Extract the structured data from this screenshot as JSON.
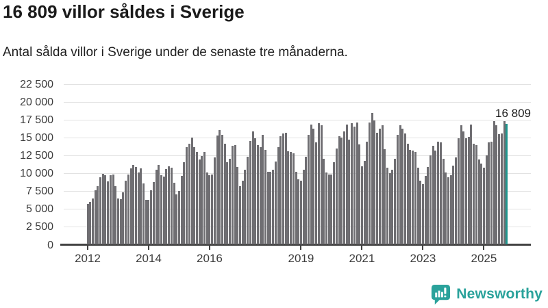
{
  "header": {
    "title": "16 809 villor såldes i Sverige",
    "subtitle": "Antal sålda villor i Sverige under de senaste tre månaderna."
  },
  "chart_data": {
    "type": "bar",
    "title": "16 809 villor såldes i Sverige",
    "subtitle": "Antal sålda villor i Sverige under de senaste tre månaderna.",
    "unit": "sålda villor (rullande tre månader)",
    "frequency": "monthly",
    "start": {
      "year": 2012,
      "month": 1
    },
    "end": {
      "year": 2025,
      "month": 10
    },
    "values": [
      5700,
      5900,
      6450,
      7550,
      8100,
      9400,
      9900,
      9700,
      8850,
      9650,
      9800,
      8150,
      6400,
      6300,
      7300,
      8900,
      9800,
      10600,
      11100,
      10800,
      10100,
      10600,
      8500,
      6250,
      6200,
      7550,
      8700,
      10450,
      11100,
      9700,
      9500,
      10550,
      10900,
      10700,
      8600,
      7000,
      7500,
      9600,
      11500,
      13600,
      14100,
      14900,
      13600,
      12900,
      11900,
      12400,
      12900,
      10100,
      9700,
      9800,
      12150,
      15200,
      16000,
      15350,
      14100,
      11500,
      12000,
      13750,
      13900,
      10850,
      8150,
      8950,
      10400,
      12300,
      14500,
      15800,
      14850,
      13900,
      13600,
      15300,
      13200,
      10200,
      10200,
      10400,
      11600,
      13600,
      15100,
      15550,
      15650,
      13000,
      12950,
      12700,
      10200,
      9100,
      8950,
      10400,
      12300,
      15350,
      16800,
      16150,
      14250,
      16950,
      16650,
      12000,
      10050,
      9750,
      9800,
      11500,
      13450,
      15150,
      14900,
      15850,
      16800,
      14700,
      16950,
      16500,
      17000,
      14000,
      10900,
      11700,
      14400,
      17000,
      18400,
      17350,
      15650,
      16150,
      16700,
      13270,
      10700,
      9950,
      10400,
      12000,
      15350,
      16650,
      16150,
      15500,
      14050,
      13250,
      13100,
      12950,
      10700,
      8950,
      8450,
      9600,
      10850,
      12450,
      13750,
      13100,
      14400,
      14250,
      11990,
      10050,
      9400,
      9700,
      11000,
      12150,
      14850,
      16650,
      15850,
      14870,
      15050,
      16800,
      14050,
      13900,
      11850,
      11350,
      10700,
      12450,
      14250,
      14400,
      17200,
      16700,
      15400,
      15500,
      17280,
      16809
    ],
    "highlight": {
      "index": 165,
      "label": "16 809",
      "value": 16809,
      "color": "#1f968e"
    },
    "bar_color": "#6f6e72",
    "ylim": [
      0,
      22500
    ],
    "yticks": [
      {
        "value": 0,
        "label": "0"
      },
      {
        "value": 2500,
        "label": "2 500"
      },
      {
        "value": 5000,
        "label": "5 000"
      },
      {
        "value": 7500,
        "label": "7 500"
      },
      {
        "value": 10000,
        "label": "10 000"
      },
      {
        "value": 12500,
        "label": "12 500"
      },
      {
        "value": 15000,
        "label": "15 000"
      },
      {
        "value": 17500,
        "label": "17 500"
      },
      {
        "value": 20000,
        "label": "20 000"
      },
      {
        "value": 22500,
        "label": "22 500"
      }
    ],
    "xticks": [
      {
        "year": 2012,
        "label": "2012"
      },
      {
        "year": 2014,
        "label": "2014"
      },
      {
        "year": 2016,
        "label": "2016"
      },
      {
        "year": 2019,
        "label": "2019"
      },
      {
        "year": 2021,
        "label": "2021"
      },
      {
        "year": 2023,
        "label": "2023"
      },
      {
        "year": 2025,
        "label": "2025"
      }
    ],
    "grid": "horizontal",
    "legend": "none"
  },
  "footer": {
    "logo_text": "Newsworthy",
    "logo_color": "#2aa29b"
  }
}
